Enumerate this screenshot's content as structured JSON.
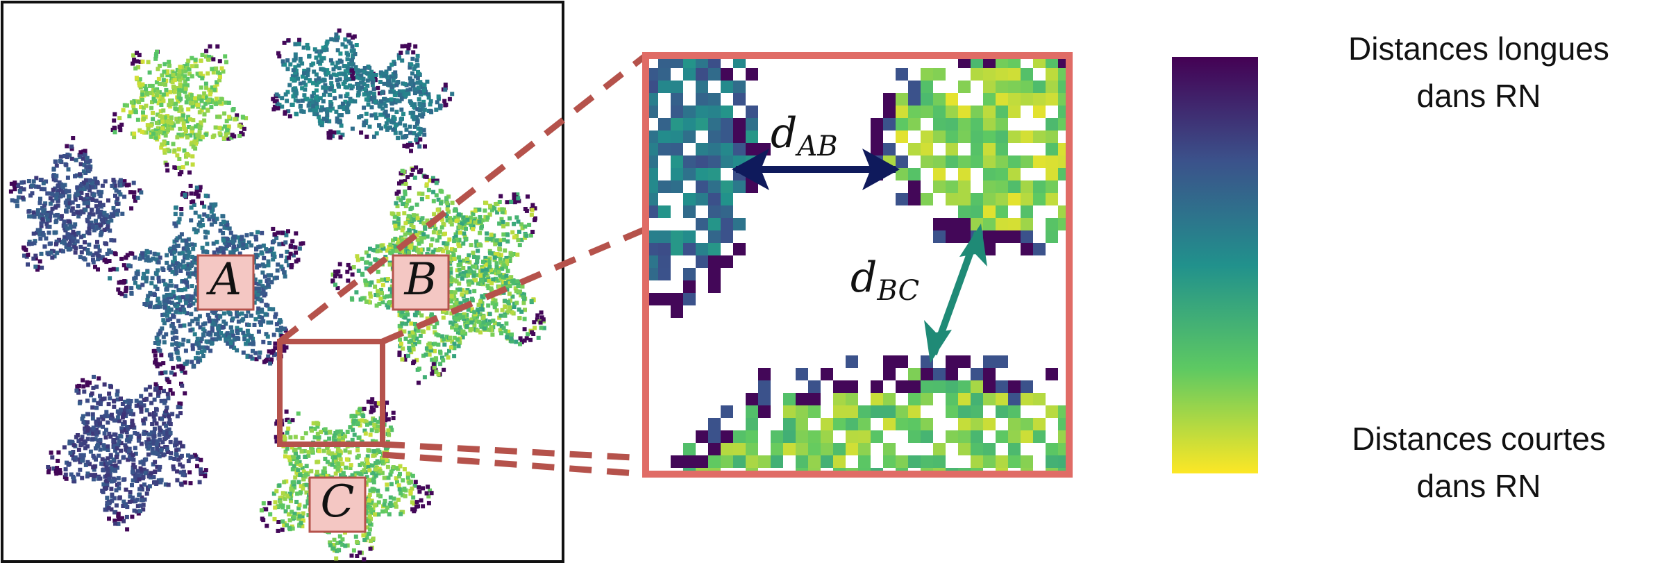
{
  "clusters": [
    {
      "id": "A",
      "label": "A"
    },
    {
      "id": "B",
      "label": "B"
    },
    {
      "id": "C",
      "label": "C"
    }
  ],
  "distances": {
    "ab": {
      "symbol": "d",
      "subscript": "AB"
    },
    "bc": {
      "symbol": "d",
      "subscript": "BC"
    }
  },
  "colorbar": {
    "top_label_line1": "Distances longues",
    "top_label_line2": "dans RN",
    "bottom_label_line1": "Distances courtes",
    "bottom_label_line2": "dans RN"
  },
  "colors": {
    "frame": "#111111",
    "zoom_box": "#b5524b",
    "zoom_border": "#e06c66",
    "label_box_fill": "#f4c7c3",
    "arrow_ab": "#0f1a5c",
    "arrow_bc": "#1f8a76",
    "viridis": [
      "#440154",
      "#3b528b",
      "#21918c",
      "#5ec962",
      "#fde725"
    ]
  }
}
